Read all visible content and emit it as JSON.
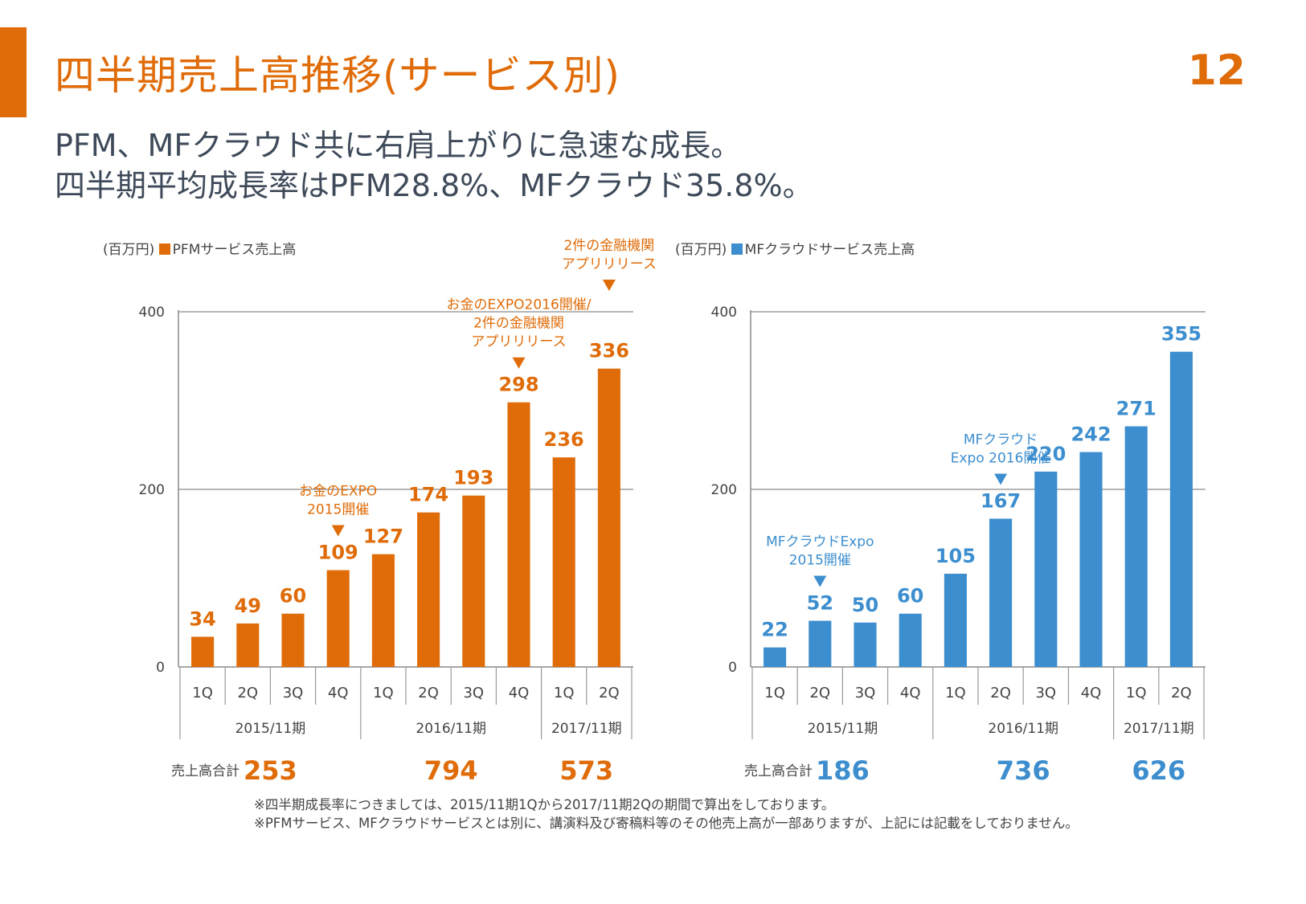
{
  "page": {
    "title": "四半期売上高推移(サービス別)",
    "page_number": "12",
    "subtitle_lines": [
      "PFM、MFクラウド共に右肩上がりに急速な成長。",
      "四半期平均成長率はPFM28.8%、MFクラウド35.8%。"
    ],
    "notes": [
      "※四半期成長率につきましては、2015/11期1Qから2017/11期2Qの期間で算出をしております。",
      "※PFMサービス、MFクラウドサービスとは別に、講演料及び寄稿料等のその他売上高が一部ありますが、上記には記載をしておりません。"
    ]
  },
  "colors": {
    "accent": "#e06c09",
    "pfm": "#e06c09",
    "mf": "#3d8ecf",
    "text": "#3e4a59"
  },
  "chart_data": [
    {
      "type": "bar",
      "unit_label": "(百万円)",
      "legend": "PFMサービス売上高",
      "color": "#e06c09",
      "ylim": [
        0,
        400
      ],
      "yticks": [
        0,
        200,
        400
      ],
      "categories": [
        "1Q",
        "2Q",
        "3Q",
        "4Q",
        "1Q",
        "2Q",
        "3Q",
        "4Q",
        "1Q",
        "2Q"
      ],
      "values": [
        34,
        49,
        60,
        109,
        127,
        174,
        193,
        298,
        236,
        336
      ],
      "fiscal_years": [
        {
          "label": "2015/11期",
          "span": 4,
          "total": "253"
        },
        {
          "label": "2016/11期",
          "span": 4,
          "total": "794"
        },
        {
          "label": "2017/11期",
          "span": 2,
          "total": "573"
        }
      ],
      "total_label": "売上高合計",
      "annotations": [
        {
          "index": 3,
          "lines": [
            "お金のEXPO",
            "2015開催"
          ]
        },
        {
          "index": 7,
          "lines": [
            "お金のEXPO2016開催/",
            "2件の金融機関",
            "アプリリリース"
          ]
        },
        {
          "index": 9,
          "lines": [
            "2件の金融機関",
            "アプリリリース"
          ]
        }
      ]
    },
    {
      "type": "bar",
      "unit_label": "(百万円)",
      "legend": "MFクラウドサービス売上高",
      "color": "#3d8ecf",
      "ylim": [
        0,
        400
      ],
      "yticks": [
        0,
        200,
        400
      ],
      "categories": [
        "1Q",
        "2Q",
        "3Q",
        "4Q",
        "1Q",
        "2Q",
        "3Q",
        "4Q",
        "1Q",
        "2Q"
      ],
      "values": [
        22,
        52,
        50,
        60,
        105,
        167,
        220,
        242,
        271,
        355
      ],
      "fiscal_years": [
        {
          "label": "2015/11期",
          "span": 4,
          "total": "186"
        },
        {
          "label": "2016/11期",
          "span": 4,
          "total": "736"
        },
        {
          "label": "2017/11期",
          "span": 2,
          "total": "626"
        }
      ],
      "total_label": "売上高合計",
      "annotations": [
        {
          "index": 1,
          "lines": [
            "MFクラウドExpo",
            "2015開催"
          ]
        },
        {
          "index": 5,
          "lines": [
            "MFクラウド",
            "Expo 2016開催"
          ]
        }
      ]
    }
  ]
}
